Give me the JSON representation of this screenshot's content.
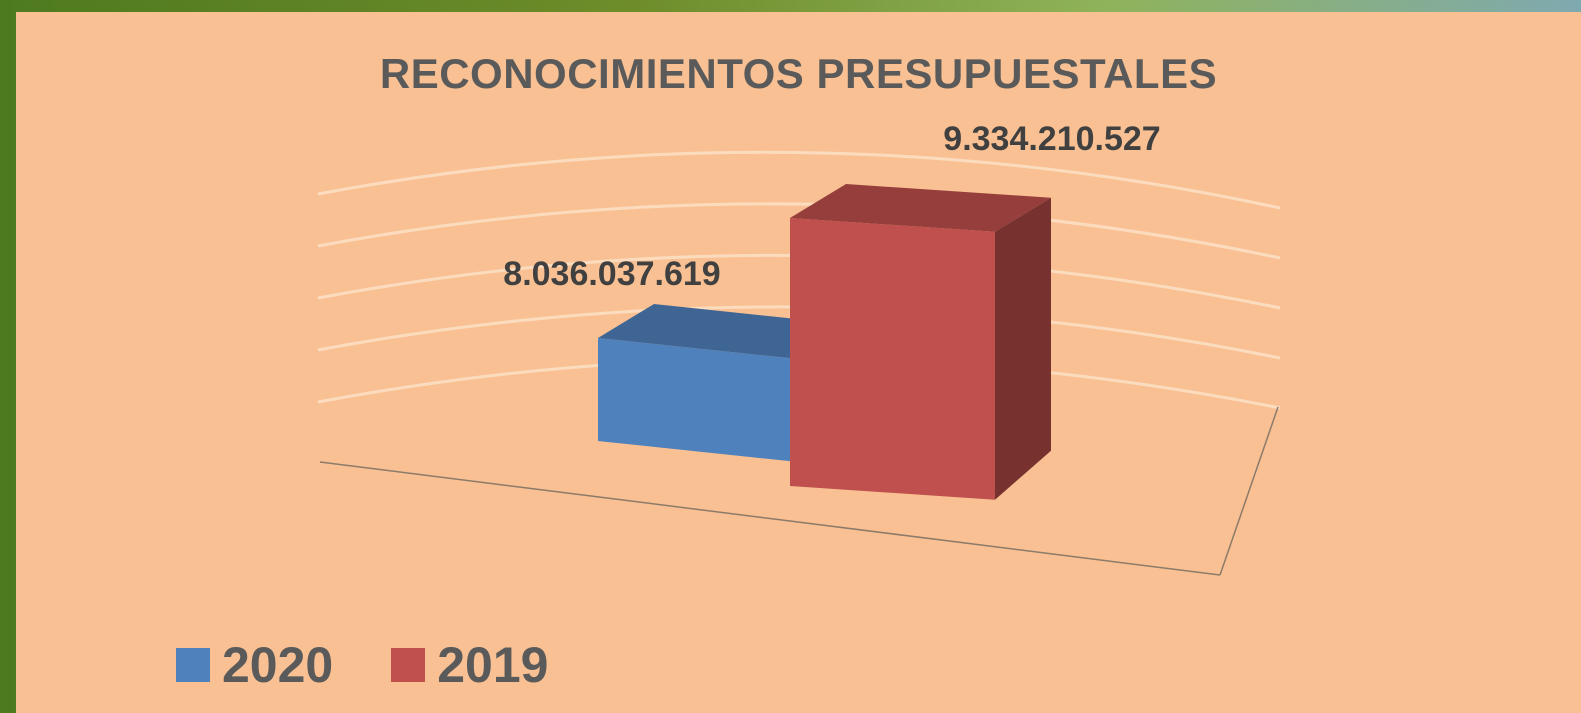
{
  "chart_data": {
    "type": "bar",
    "title": "RECONOCIMIENTOS PRESUPUESTALES",
    "categories": [
      ""
    ],
    "series": [
      {
        "name": "2020",
        "values": [
          8036037619
        ],
        "label": "8.036.037.619",
        "color": "#4f81bd"
      },
      {
        "name": "2019",
        "values": [
          9334210527
        ],
        "label": "9.334.210.527",
        "color": "#c0504d"
      }
    ],
    "three_d": true,
    "grid": true,
    "legend": "bottom-left",
    "ylim": [
      0,
      10000000000
    ]
  }
}
